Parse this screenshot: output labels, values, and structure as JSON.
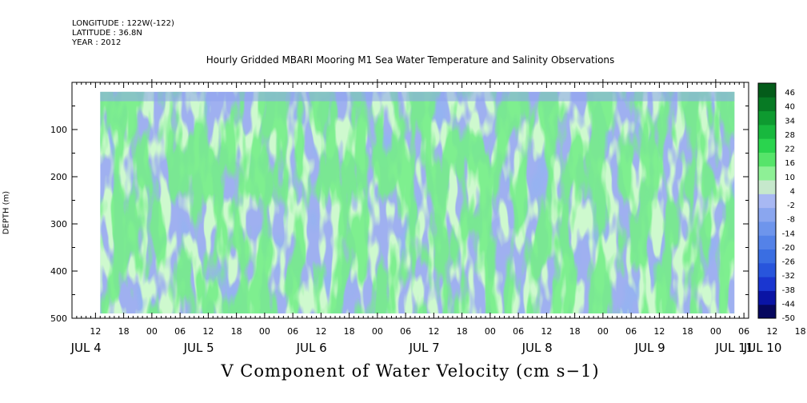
{
  "header": {
    "longitude": "LONGITUDE : 122W(-122)",
    "latitude": "LATITUDE : 36.8N",
    "year": "YEAR : 2012"
  },
  "chart_data": {
    "type": "heatmap",
    "title": "Hourly Gridded MBARI Mooring M1 Sea Water Temperature and Salinity Observations",
    "xlabel": "V Component of Water Velocity (cm s−1)",
    "ylabel": "DEPTH (m)",
    "y_range_m": [
      0,
      500
    ],
    "y_inverted": true,
    "data_depth_range_m": [
      20,
      490
    ],
    "y_ticks": [
      100,
      200,
      300,
      400,
      500
    ],
    "y_tick_labels": [
      "100",
      "200",
      "300",
      "400",
      "500"
    ],
    "x_range_hours_from_jul4_00": [
      7,
      151
    ],
    "data_time_range_hours_from_jul4_00": [
      13,
      148
    ],
    "hour_labels": [
      "12",
      "18",
      "00",
      "06",
      "12",
      "18",
      "00",
      "06",
      "12",
      "18",
      "00",
      "06",
      "12",
      "18",
      "00",
      "06",
      "12",
      "18",
      "00",
      "06",
      "12",
      "18",
      "00",
      "06",
      "12",
      "18",
      "00",
      "06",
      "12",
      "18",
      "00",
      "06"
    ],
    "day_labels": [
      "JUL  4",
      "JUL  5",
      "JUL  6",
      "JUL  7",
      "JUL  8",
      "JUL  9",
      "JUL 10",
      "JUL 11"
    ],
    "colorbar": {
      "levels": [
        -50,
        -44,
        -38,
        -32,
        -26,
        -20,
        -14,
        -8,
        -2,
        4,
        10,
        16,
        22,
        28,
        34,
        40,
        46
      ],
      "labels": [
        "46",
        "40",
        "34",
        "28",
        "22",
        "16",
        "10",
        "4",
        "-2",
        "-8",
        "-14",
        "-20",
        "-26",
        "-32",
        "-38",
        "-44",
        "-50"
      ],
      "colors": [
        "#06075e",
        "#0a14a4",
        "#1a36d0",
        "#2855dc",
        "#3a6ee2",
        "#5482e8",
        "#6e95ec",
        "#8aa6ef",
        "#a8b8f3",
        "#c6e8cc",
        "#8ef096",
        "#56e46a",
        "#2ad44e",
        "#18b83e",
        "#0e9a30",
        "#077a24",
        "#045c1a"
      ]
    },
    "features": [
      {
        "region": "surface 20-60 m",
        "value_range_cm_s": [
          -14,
          -2
        ],
        "description_color": "light blue"
      },
      {
        "region": "20-200 m, Jul 6-Jul 9",
        "value_range_cm_s": [
          4,
          22
        ],
        "description_color": "green"
      },
      {
        "region": "250-480 m, Jul 4-Jul 6",
        "value_range_cm_s": [
          -26,
          -8
        ],
        "description_color": "blue"
      }
    ]
  }
}
